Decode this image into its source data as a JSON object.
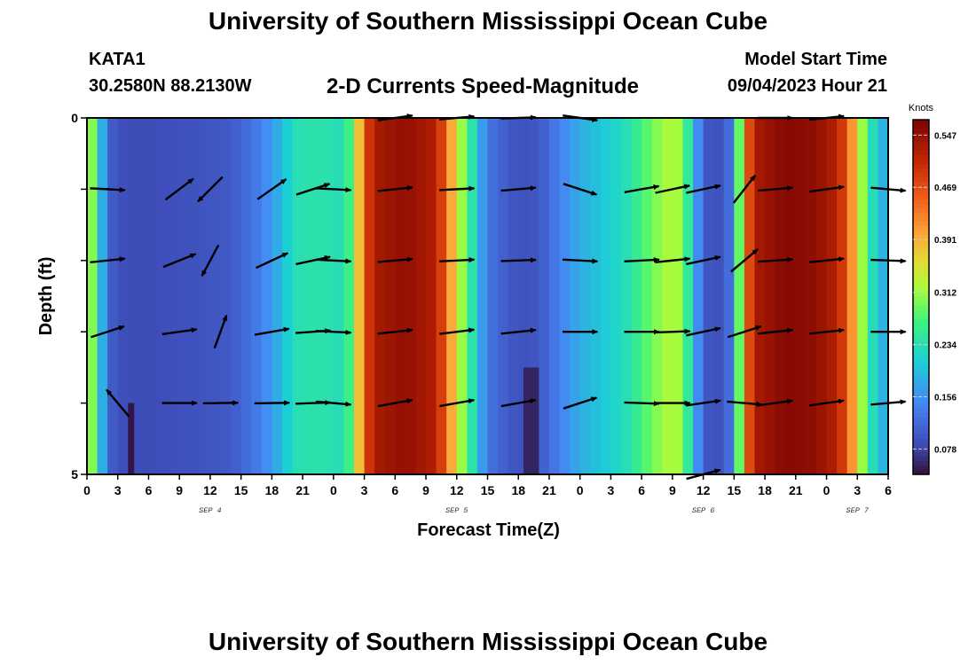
{
  "header": {
    "title": "University of Southern Mississippi Ocean Cube",
    "station": "KATA1",
    "coords": "30.2580N  88.2130W",
    "subtitle": "2-D Currents Speed-Magnitude",
    "model_start_label": "Model Start Time",
    "model_start_value": "09/04/2023 Hour 21",
    "footer_title": "University of Southern Mississippi Ocean Cube"
  },
  "chart_data": {
    "type": "heatmap",
    "title": "2-D Currents Speed-Magnitude",
    "xlabel": "Forecast Time(Z)",
    "ylabel": "Depth (ft)",
    "x_unit": "hours from SEP 4 00Z",
    "xlim": [
      0,
      78
    ],
    "ylim": [
      0,
      5
    ],
    "y_ticks": [
      {
        "value": 0,
        "label": "0"
      },
      {
        "value": 5,
        "label": "5"
      }
    ],
    "x_ticks": [
      {
        "value": 0,
        "label": "0"
      },
      {
        "value": 3,
        "label": "3"
      },
      {
        "value": 6,
        "label": "6"
      },
      {
        "value": 9,
        "label": "9"
      },
      {
        "value": 12,
        "label": "12"
      },
      {
        "value": 15,
        "label": "15"
      },
      {
        "value": 18,
        "label": "18"
      },
      {
        "value": 21,
        "label": "21"
      },
      {
        "value": 24,
        "label": "0"
      },
      {
        "value": 27,
        "label": "3"
      },
      {
        "value": 30,
        "label": "6"
      },
      {
        "value": 33,
        "label": "9"
      },
      {
        "value": 36,
        "label": "12"
      },
      {
        "value": 39,
        "label": "15"
      },
      {
        "value": 42,
        "label": "18"
      },
      {
        "value": 45,
        "label": "21"
      },
      {
        "value": 48,
        "label": "0"
      },
      {
        "value": 51,
        "label": "3"
      },
      {
        "value": 54,
        "label": "6"
      },
      {
        "value": 57,
        "label": "9"
      },
      {
        "value": 60,
        "label": "12"
      },
      {
        "value": 63,
        "label": "15"
      },
      {
        "value": 66,
        "label": "18"
      },
      {
        "value": 69,
        "label": "21"
      },
      {
        "value": 72,
        "label": "0"
      },
      {
        "value": 75,
        "label": "3"
      },
      {
        "value": 78,
        "label": "6"
      }
    ],
    "date_labels": [
      {
        "value": 12,
        "label": "SEP 4"
      },
      {
        "value": 36,
        "label": "SEP 5"
      },
      {
        "value": 60,
        "label": "SEP 6"
      },
      {
        "value": 75,
        "label": "SEP 7"
      }
    ],
    "colorbar": {
      "unit": "Knots",
      "min": 0.04,
      "max": 0.57,
      "ticks": [
        0.078,
        0.156,
        0.234,
        0.312,
        0.391,
        0.469,
        0.547
      ]
    },
    "speed_profile_knots": [
      [
        0,
        0.36
      ],
      [
        0.5,
        0.3
      ],
      [
        1,
        0.22
      ],
      [
        1.5,
        0.18
      ],
      [
        2,
        0.14
      ],
      [
        2.5,
        0.1
      ],
      [
        3,
        0.09
      ],
      [
        5,
        0.085
      ],
      [
        9,
        0.09
      ],
      [
        14,
        0.1
      ],
      [
        17,
        0.14
      ],
      [
        19,
        0.19
      ],
      [
        20,
        0.23
      ],
      [
        22,
        0.24
      ],
      [
        25,
        0.23
      ],
      [
        26,
        0.3
      ],
      [
        27,
        0.46
      ],
      [
        28,
        0.53
      ],
      [
        31,
        0.55
      ],
      [
        34,
        0.52
      ],
      [
        35,
        0.45
      ],
      [
        36,
        0.34
      ],
      [
        37,
        0.28
      ],
      [
        38,
        0.2
      ],
      [
        39,
        0.13
      ],
      [
        41,
        0.1
      ],
      [
        43,
        0.09
      ],
      [
        44,
        0.1
      ],
      [
        46,
        0.14
      ],
      [
        48,
        0.18
      ],
      [
        51,
        0.21
      ],
      [
        53,
        0.24
      ],
      [
        54,
        0.27
      ],
      [
        55,
        0.29
      ],
      [
        57,
        0.33
      ],
      [
        58,
        0.3
      ],
      [
        59,
        0.2
      ],
      [
        60,
        0.1
      ],
      [
        62,
        0.09
      ],
      [
        63,
        0.15
      ],
      [
        64,
        0.42
      ],
      [
        65,
        0.53
      ],
      [
        68,
        0.56
      ],
      [
        71,
        0.55
      ],
      [
        73,
        0.52
      ],
      [
        74,
        0.46
      ],
      [
        75,
        0.36
      ],
      [
        76,
        0.26
      ],
      [
        77,
        0.2
      ],
      [
        78,
        0.17
      ]
    ],
    "low_value_patches": [
      {
        "x_from": 4,
        "x_to": 4.6,
        "depth_from": 4.0,
        "depth_to": 5,
        "speed": 0.04
      },
      {
        "x_from": 42.5,
        "x_to": 44,
        "depth_from": 3.5,
        "depth_to": 5,
        "speed": 0.05
      }
    ],
    "vectors": [
      {
        "x": 2,
        "depth": 1,
        "angle": -3
      },
      {
        "x": 2,
        "depth": 2,
        "angle": 6
      },
      {
        "x": 2,
        "depth": 3,
        "angle": 18
      },
      {
        "x": 3,
        "depth": 4,
        "angle": 130
      },
      {
        "x": 9,
        "depth": 1,
        "angle": 37
      },
      {
        "x": 9,
        "depth": 2,
        "angle": 22
      },
      {
        "x": 9,
        "depth": 3,
        "angle": 8
      },
      {
        "x": 9,
        "depth": 4,
        "angle": 0
      },
      {
        "x": 12,
        "depth": 1,
        "angle": -135
      },
      {
        "x": 12,
        "depth": 2,
        "angle": -118
      },
      {
        "x": 13,
        "depth": 3,
        "angle": 70
      },
      {
        "x": 13,
        "depth": 4,
        "angle": 1
      },
      {
        "x": 18,
        "depth": 1,
        "angle": 35
      },
      {
        "x": 18,
        "depth": 2,
        "angle": 25
      },
      {
        "x": 18,
        "depth": 3,
        "angle": 10
      },
      {
        "x": 18,
        "depth": 4,
        "angle": 1
      },
      {
        "x": 22,
        "depth": 1,
        "angle": 18
      },
      {
        "x": 22,
        "depth": 2,
        "angle": 12
      },
      {
        "x": 22,
        "depth": 3,
        "angle": 4
      },
      {
        "x": 22,
        "depth": 4,
        "angle": 2
      },
      {
        "x": 24,
        "depth": 1,
        "angle": -3
      },
      {
        "x": 24,
        "depth": 2,
        "angle": -3
      },
      {
        "x": 24,
        "depth": 3,
        "angle": -3
      },
      {
        "x": 24,
        "depth": 4,
        "angle": -5
      },
      {
        "x": 30,
        "depth": 0,
        "angle": 8
      },
      {
        "x": 30,
        "depth": 1,
        "angle": 6
      },
      {
        "x": 30,
        "depth": 2,
        "angle": 5
      },
      {
        "x": 30,
        "depth": 3,
        "angle": 6
      },
      {
        "x": 30,
        "depth": 4,
        "angle": 10
      },
      {
        "x": 36,
        "depth": 0,
        "angle": 5
      },
      {
        "x": 36,
        "depth": 1,
        "angle": 3
      },
      {
        "x": 36,
        "depth": 2,
        "angle": 3
      },
      {
        "x": 36,
        "depth": 3,
        "angle": 7
      },
      {
        "x": 36,
        "depth": 4,
        "angle": 10
      },
      {
        "x": 42,
        "depth": 0,
        "angle": 2
      },
      {
        "x": 42,
        "depth": 1,
        "angle": 5
      },
      {
        "x": 42,
        "depth": 2,
        "angle": 2
      },
      {
        "x": 42,
        "depth": 3,
        "angle": 6
      },
      {
        "x": 42,
        "depth": 4,
        "angle": 10
      },
      {
        "x": 48,
        "depth": 0,
        "angle": -8
      },
      {
        "x": 48,
        "depth": 1,
        "angle": -18
      },
      {
        "x": 48,
        "depth": 2,
        "angle": -3
      },
      {
        "x": 48,
        "depth": 3,
        "angle": 0
      },
      {
        "x": 48,
        "depth": 4,
        "angle": 18
      },
      {
        "x": 54,
        "depth": 1,
        "angle": 10
      },
      {
        "x": 54,
        "depth": 2,
        "angle": 3
      },
      {
        "x": 54,
        "depth": 3,
        "angle": 0
      },
      {
        "x": 54,
        "depth": 4,
        "angle": -2
      },
      {
        "x": 57,
        "depth": 1,
        "angle": 12
      },
      {
        "x": 57,
        "depth": 2,
        "angle": 6
      },
      {
        "x": 57,
        "depth": 3,
        "angle": 2
      },
      {
        "x": 57,
        "depth": 4,
        "angle": 0
      },
      {
        "x": 60,
        "depth": 1,
        "angle": 12
      },
      {
        "x": 60,
        "depth": 2,
        "angle": 12
      },
      {
        "x": 60,
        "depth": 3,
        "angle": 12
      },
      {
        "x": 60,
        "depth": 4,
        "angle": 8
      },
      {
        "x": 60,
        "depth": 5,
        "angle": 15
      },
      {
        "x": 64,
        "depth": 1,
        "angle": 52
      },
      {
        "x": 64,
        "depth": 2,
        "angle": 40
      },
      {
        "x": 64,
        "depth": 3,
        "angle": 18
      },
      {
        "x": 64,
        "depth": 4,
        "angle": -5
      },
      {
        "x": 67,
        "depth": 0,
        "angle": 0
      },
      {
        "x": 67,
        "depth": 1,
        "angle": 5
      },
      {
        "x": 67,
        "depth": 2,
        "angle": 4
      },
      {
        "x": 67,
        "depth": 3,
        "angle": 6
      },
      {
        "x": 67,
        "depth": 4,
        "angle": 8
      },
      {
        "x": 72,
        "depth": 0,
        "angle": 6
      },
      {
        "x": 72,
        "depth": 1,
        "angle": 8
      },
      {
        "x": 72,
        "depth": 2,
        "angle": 6
      },
      {
        "x": 72,
        "depth": 3,
        "angle": 6
      },
      {
        "x": 72,
        "depth": 4,
        "angle": 8
      },
      {
        "x": 78,
        "depth": 1,
        "angle": -5
      },
      {
        "x": 78,
        "depth": 2,
        "angle": -2
      },
      {
        "x": 78,
        "depth": 3,
        "angle": 0
      },
      {
        "x": 78,
        "depth": 4,
        "angle": 5
      }
    ],
    "vector_style": {
      "color": "#000000",
      "length_hours": 3.4
    }
  }
}
